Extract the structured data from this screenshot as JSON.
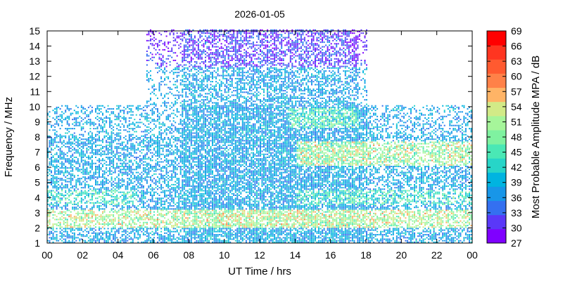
{
  "chart_data": {
    "type": "heatmap",
    "title": "2026-01-05",
    "xlabel": "UT Time / hrs",
    "ylabel": "Frequency / MHz",
    "colorbar_label": "Most Probable Amplitude MPA / dB",
    "xlim": [
      0,
      24
    ],
    "ylim": [
      1,
      15
    ],
    "x_ticks": [
      "00",
      "02",
      "04",
      "06",
      "08",
      "10",
      "12",
      "14",
      "16",
      "18",
      "20",
      "22",
      "00"
    ],
    "y_ticks": [
      "1",
      "2",
      "3",
      "4",
      "5",
      "6",
      "7",
      "8",
      "9",
      "10",
      "11",
      "12",
      "13",
      "14",
      "15"
    ],
    "color_scale": {
      "min": 27,
      "max": 69,
      "labels": [
        "27",
        "30",
        "33",
        "36",
        "39",
        "42",
        "45",
        "48",
        "51",
        "54",
        "57",
        "60",
        "63",
        "66",
        "69"
      ],
      "colors": [
        "#7f00ff",
        "#5a38f8",
        "#3470f0",
        "#1896e8",
        "#00b4e0",
        "#27d5c8",
        "#4ae8b5",
        "#7ff2a0",
        "#a6f59a",
        "#d2ea87",
        "#ffb466",
        "#ff8148",
        "#ff5a30",
        "#ff3520",
        "#ff0000"
      ]
    },
    "grid": false,
    "data_description_regions": [
      {
        "hours": [
          0,
          24
        ],
        "mhz": [
          1,
          10
        ],
        "typical_db": 40
      },
      {
        "hours": [
          5.5,
          18
        ],
        "mhz": [
          10,
          15
        ],
        "typical_db": 38
      },
      {
        "hours": [
          0,
          24
        ],
        "mhz": [
          2,
          3
        ],
        "typical_db": 57
      },
      {
        "hours": [
          14,
          24
        ],
        "mhz": [
          6,
          8
        ],
        "typical_db": 55
      }
    ]
  }
}
